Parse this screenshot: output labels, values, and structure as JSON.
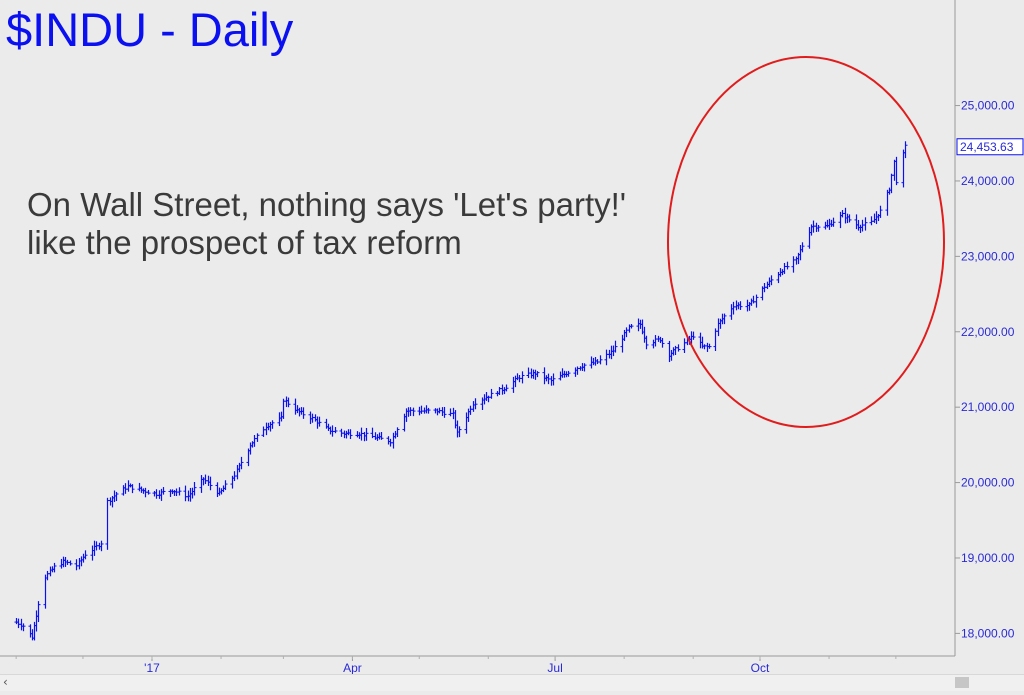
{
  "chart_data": {
    "type": "ohlc",
    "title": "$INDU - Daily",
    "annotation": [
      "On Wall Street, nothing says 'Let's party!'",
      "like the prospect of tax reform"
    ],
    "xlabel": "",
    "ylabel": "",
    "ylim": [
      17700,
      26400
    ],
    "y_ticks": [
      18000,
      19000,
      20000,
      21000,
      22000,
      23000,
      24000,
      25000
    ],
    "y_tick_labels": [
      "18,000.00",
      "19,000.00",
      "20,000.00",
      "21,000.00",
      "22,000.00",
      "23,000.00",
      "24,000.00",
      "25,000.00"
    ],
    "x_tick_labels": [
      "'17",
      "Apr",
      "Jul",
      "Oct"
    ],
    "x_tick_dates": [
      "2017-01-01",
      "2017-04-01",
      "2017-07-01",
      "2017-10-01"
    ],
    "last_value_label": "24,453.63",
    "last_value": 24453.63,
    "grid": false,
    "highlight": "ellipse",
    "series": [
      {
        "values": [
          [
            "2016-11-01",
            18150
          ],
          [
            "2016-11-04",
            18100
          ],
          [
            "2016-11-08",
            17950
          ],
          [
            "2016-11-11",
            18400
          ],
          [
            "2016-11-14",
            18750
          ],
          [
            "2016-11-18",
            18880
          ],
          [
            "2016-11-22",
            18950
          ],
          [
            "2016-11-28",
            18900
          ],
          [
            "2016-12-02",
            19050
          ],
          [
            "2016-12-07",
            19150
          ],
          [
            "2016-12-09",
            19200
          ],
          [
            "2016-12-12",
            19750
          ],
          [
            "2016-12-16",
            19850
          ],
          [
            "2016-12-21",
            19950
          ],
          [
            "2016-12-27",
            19900
          ],
          [
            "2017-01-03",
            19850
          ],
          [
            "2017-01-10",
            19900
          ],
          [
            "2017-01-17",
            19820
          ],
          [
            "2017-01-24",
            20050
          ],
          [
            "2017-01-31",
            19850
          ],
          [
            "2017-02-07",
            20100
          ],
          [
            "2017-02-14",
            20500
          ],
          [
            "2017-02-21",
            20750
          ],
          [
            "2017-02-28",
            20850
          ],
          [
            "2017-03-01",
            21100
          ],
          [
            "2017-03-07",
            20950
          ],
          [
            "2017-03-14",
            20850
          ],
          [
            "2017-03-21",
            20700
          ],
          [
            "2017-03-28",
            20650
          ],
          [
            "2017-04-04",
            20650
          ],
          [
            "2017-04-11",
            20600
          ],
          [
            "2017-04-18",
            20550
          ],
          [
            "2017-04-25",
            20950
          ],
          [
            "2017-05-02",
            20950
          ],
          [
            "2017-05-09",
            20950
          ],
          [
            "2017-05-16",
            20900
          ],
          [
            "2017-05-18",
            20650
          ],
          [
            "2017-05-25",
            21050
          ],
          [
            "2017-06-01",
            21150
          ],
          [
            "2017-06-08",
            21250
          ],
          [
            "2017-06-15",
            21400
          ],
          [
            "2017-06-22",
            21450
          ],
          [
            "2017-06-29",
            21350
          ],
          [
            "2017-07-06",
            21450
          ],
          [
            "2017-07-13",
            21550
          ],
          [
            "2017-07-20",
            21600
          ],
          [
            "2017-07-27",
            21750
          ],
          [
            "2017-08-03",
            22050
          ],
          [
            "2017-08-08",
            22100
          ],
          [
            "2017-08-11",
            21850
          ],
          [
            "2017-08-17",
            21900
          ],
          [
            "2017-08-21",
            21700
          ],
          [
            "2017-08-28",
            21850
          ],
          [
            "2017-09-01",
            21950
          ],
          [
            "2017-09-05",
            21800
          ],
          [
            "2017-09-08",
            21800
          ],
          [
            "2017-09-12",
            22100
          ],
          [
            "2017-09-19",
            22350
          ],
          [
            "2017-09-26",
            22350
          ],
          [
            "2017-10-03",
            22600
          ],
          [
            "2017-10-10",
            22800
          ],
          [
            "2017-10-17",
            22950
          ],
          [
            "2017-10-24",
            23400
          ],
          [
            "2017-10-31",
            23400
          ],
          [
            "2017-11-07",
            23550
          ],
          [
            "2017-11-14",
            23400
          ],
          [
            "2017-11-20",
            23450
          ],
          [
            "2017-11-24",
            23600
          ],
          [
            "2017-11-28",
            23900
          ],
          [
            "2017-11-30",
            24250
          ],
          [
            "2017-12-01",
            24000
          ],
          [
            "2017-12-04",
            24350
          ],
          [
            "2017-12-05",
            24453.63
          ]
        ]
      }
    ],
    "colors": {
      "bars": "#0b10f0",
      "title": "#0b10f0",
      "axis_text": "#2a2ad6",
      "highlight": "#e01c1c",
      "annotation": "#3a3a3a",
      "background": "#ebebeb"
    }
  }
}
